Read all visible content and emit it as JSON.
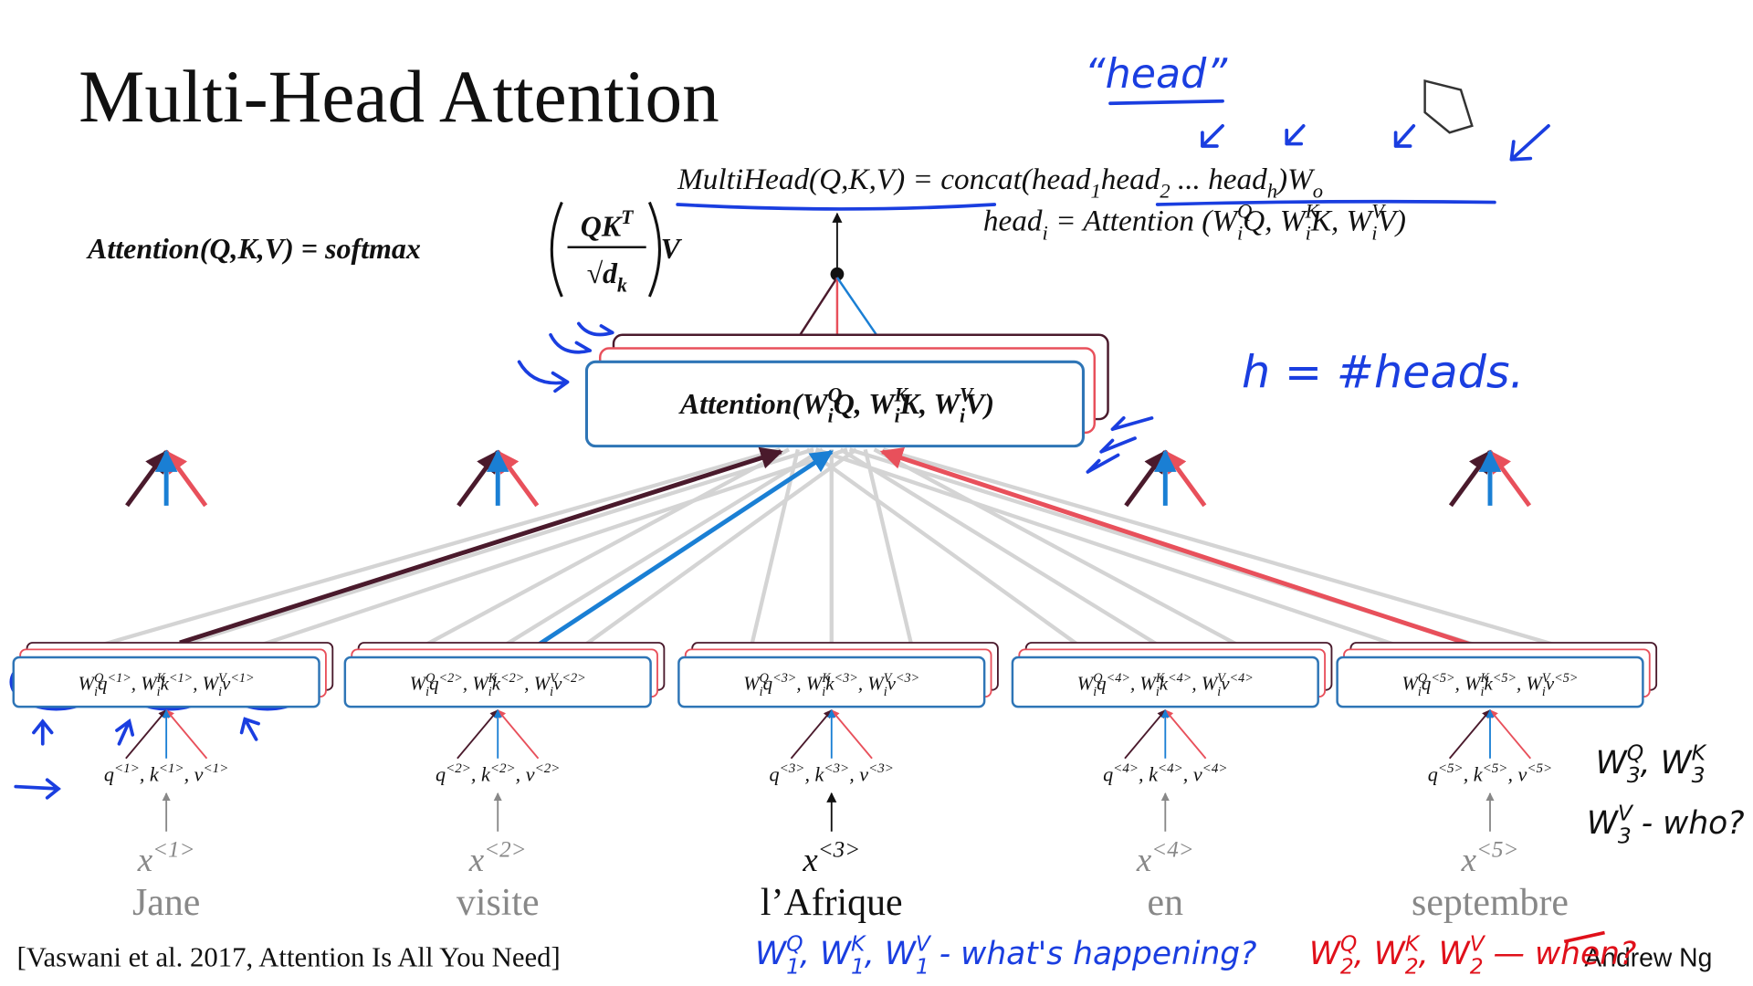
{
  "title": "Multi-Head Attention",
  "attention_formula": {
    "left": "Attention(Q,K,V) = softmax",
    "numerator": [
      "QK",
      {
        "sup": "T"
      }
    ],
    "denominator": [
      "√d",
      {
        "sub": "k"
      }
    ],
    "right": "V"
  },
  "multihead_formula": [
    "MultiHead(Q,K,V)",
    "  = concat(head",
    {
      "sub": "1"
    },
    "head",
    {
      "sub": "2"
    },
    " ... head",
    {
      "sub": "h"
    },
    ")W",
    {
      "sub": "o"
    }
  ],
  "head_formula": [
    "head",
    {
      "sub": "i"
    },
    " = Attention (W",
    {
      "sup": "Q",
      "sub": "i"
    },
    "Q, W",
    {
      "sup": "K",
      "sub": "i"
    },
    "K, W",
    {
      "sup": "V",
      "sub": "i"
    },
    "V)"
  ],
  "attention_box": [
    "Attention(W",
    {
      "sup": "Q",
      "sub": "i"
    },
    "Q, W",
    {
      "sup": "K",
      "sub": "i"
    },
    "K, W",
    {
      "sup": "V",
      "sub": "i"
    },
    "V)"
  ],
  "tokens": [
    {
      "block": [
        "W",
        {
          "sup": "Q",
          "sub": "i"
        },
        "q",
        {
          "sup": "<1>"
        },
        ", W",
        {
          "sup": "K",
          "sub": "i"
        },
        "k",
        {
          "sup": "<1>"
        },
        ", W",
        {
          "sup": "V",
          "sub": "i"
        },
        "v",
        {
          "sup": "<1>"
        }
      ],
      "qkv": [
        "q",
        {
          "sup": "<1>"
        },
        ", k",
        {
          "sup": "<1>"
        },
        ", v",
        {
          "sup": "<1>"
        }
      ],
      "x": [
        "x",
        {
          "sup": "<1>"
        }
      ],
      "word": "Jane"
    },
    {
      "block": [
        "W",
        {
          "sup": "Q",
          "sub": "i"
        },
        "q",
        {
          "sup": "<2>"
        },
        ", W",
        {
          "sup": "K",
          "sub": "i"
        },
        "k",
        {
          "sup": "<2>"
        },
        ", W",
        {
          "sup": "V",
          "sub": "i"
        },
        "v",
        {
          "sup": "<2>"
        }
      ],
      "qkv": [
        "q",
        {
          "sup": "<2>"
        },
        ", k",
        {
          "sup": "<2>"
        },
        ", v",
        {
          "sup": "<2>"
        }
      ],
      "x": [
        "x",
        {
          "sup": "<2>"
        }
      ],
      "word": "visite"
    },
    {
      "block": [
        "W",
        {
          "sup": "Q",
          "sub": "i"
        },
        "q",
        {
          "sup": "<3>"
        },
        ", W",
        {
          "sup": "K",
          "sub": "i"
        },
        "k",
        {
          "sup": "<3>"
        },
        ", W",
        {
          "sup": "V",
          "sub": "i"
        },
        "v",
        {
          "sup": "<3>"
        }
      ],
      "qkv": [
        "q",
        {
          "sup": "<3>"
        },
        ", k",
        {
          "sup": "<3>"
        },
        ", v",
        {
          "sup": "<3>"
        }
      ],
      "x": [
        "x",
        {
          "sup": "<3>"
        }
      ],
      "word": "l’Afrique"
    },
    {
      "block": [
        "W",
        {
          "sup": "Q",
          "sub": "i"
        },
        "q",
        {
          "sup": "<4>"
        },
        ", W",
        {
          "sup": "K",
          "sub": "i"
        },
        "k",
        {
          "sup": "<4>"
        },
        ", W",
        {
          "sup": "V",
          "sub": "i"
        },
        "v",
        {
          "sup": "<4>"
        }
      ],
      "qkv": [
        "q",
        {
          "sup": "<4>"
        },
        ", k",
        {
          "sup": "<4>"
        },
        ", v",
        {
          "sup": "<4>"
        }
      ],
      "x": [
        "x",
        {
          "sup": "<4>"
        }
      ],
      "word": "en"
    },
    {
      "block": [
        "W",
        {
          "sup": "Q",
          "sub": "i"
        },
        "q",
        {
          "sup": "<5>"
        },
        ", W",
        {
          "sup": "K",
          "sub": "i"
        },
        "k",
        {
          "sup": "<5>"
        },
        ", W",
        {
          "sup": "V",
          "sub": "i"
        },
        "v",
        {
          "sup": "<5>"
        }
      ],
      "qkv": [
        "q",
        {
          "sup": "<5>"
        },
        ", k",
        {
          "sup": "<5>"
        },
        ", v",
        {
          "sup": "<5>"
        }
      ],
      "x": [
        "x",
        {
          "sup": "<5>"
        }
      ],
      "word": "septembre"
    }
  ],
  "citation": "[Vaswani et al. 2017, Attention Is All You Need]",
  "author": "Andrew Ng",
  "annotations": {
    "head": "“head”",
    "heads": "h = #heads.",
    "what": [
      "W",
      {
        "sup": "Q",
        "sub": "1"
      },
      ", W",
      {
        "sup": "K",
        "sub": "1"
      },
      ", W",
      {
        "sup": "V",
        "sub": "1"
      },
      " - what's happening?"
    ],
    "when": [
      "W",
      {
        "sup": "Q",
        "sub": "2"
      },
      ", W",
      {
        "sup": "K",
        "sub": "2"
      },
      ", W",
      {
        "sup": "V",
        "sub": "2"
      },
      " — when?"
    ],
    "who_1": [
      "W",
      {
        "sup": "Q",
        "sub": "3"
      },
      ", W",
      {
        "sup": "K",
        "sub": "3"
      }
    ],
    "who_2": [
      "W",
      {
        "sup": "V",
        "sub": "3"
      },
      " - who?"
    ]
  }
}
